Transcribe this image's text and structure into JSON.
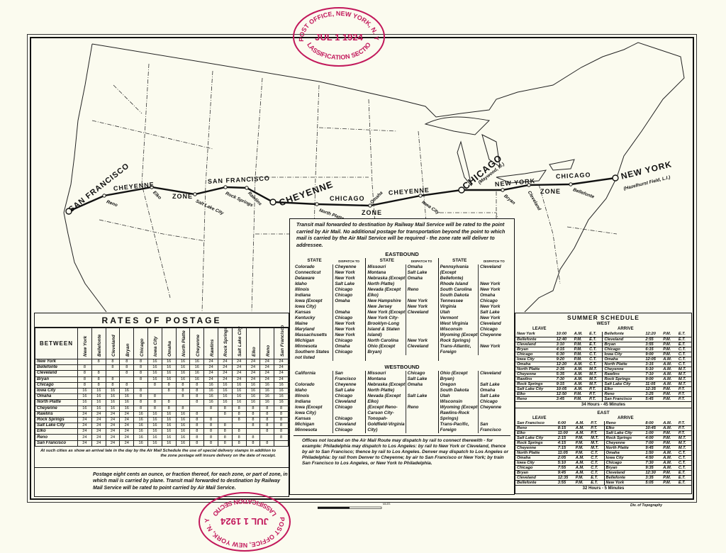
{
  "stamp": {
    "office": "POST OFFICE, NEW YORK, N. Y.",
    "month": "JUL",
    "day": "1",
    "year": "1924",
    "section": "CLASSIFICATION SECTION",
    "color": "#c2185b"
  },
  "map": {
    "route_labels": {
      "sf": "SAN FRANCISCO",
      "cheyenne_w": "CHEYENNE",
      "zone1": "ZONE",
      "sf2": "SAN FRANCISCO",
      "cheyenne": "CHEYENNE",
      "chicago_w": "CHICAGO",
      "zone2": "ZONE",
      "cheyenne2": "CHEYENNE",
      "chicago": "CHICAGO",
      "maywood": "(Maywood, Ill.)",
      "newyork_w": "NEW YORK",
      "zone3": "ZONE",
      "chicago2": "CHICAGO",
      "newyork": "NEW YORK",
      "hazelhurst": "(Hazelhurst Field, L.I.)"
    },
    "stops": [
      "Reno",
      "Elko",
      "Salt Lake City",
      "Rock Springs",
      "Rawlins",
      "North Platte",
      "Omaha",
      "Iowa City",
      "Bryan",
      "Cleveland",
      "Bellefonte"
    ],
    "scale_label": "MILES",
    "credit": "Div. of Topography"
  },
  "rates": {
    "title": "RATES OF POSTAGE",
    "between": "BETWEEN",
    "cities": [
      "New York",
      "Bellefonte",
      "Cleveland",
      "Bryan",
      "Chicago",
      "Iowa City",
      "Omaha",
      "North Platte",
      "Cheyenne",
      "Rawlins",
      "Rock Springs",
      "Salt Lake City",
      "Elko",
      "Reno",
      "San Francisco"
    ],
    "matrix": [
      [
        "",
        "8",
        "8",
        "8",
        "8",
        "16",
        "16",
        "16",
        "16",
        "24",
        "24",
        "24",
        "24",
        "24",
        "24"
      ],
      [
        "8",
        "",
        "8",
        "8",
        "8",
        "16",
        "16",
        "16",
        "16",
        "24",
        "24",
        "24",
        "24",
        "24",
        "24"
      ],
      [
        "8",
        "8",
        "",
        "8",
        "8",
        "16",
        "16",
        "16",
        "16",
        "24",
        "24",
        "24",
        "24",
        "24",
        "24"
      ],
      [
        "8",
        "8",
        "8",
        "",
        "8",
        "16",
        "16",
        "16",
        "16",
        "24",
        "24",
        "24",
        "24",
        "24",
        "24"
      ],
      [
        "8",
        "8",
        "8",
        "8",
        "",
        "8",
        "8",
        "8",
        "8",
        "16",
        "16",
        "16",
        "16",
        "16",
        "16"
      ],
      [
        "16",
        "16",
        "16",
        "16",
        "8",
        "",
        "8",
        "8",
        "8",
        "16",
        "16",
        "16",
        "16",
        "16",
        "16"
      ],
      [
        "16",
        "16",
        "16",
        "16",
        "8",
        "8",
        "",
        "8",
        "8",
        "16",
        "16",
        "16",
        "16",
        "16",
        "16"
      ],
      [
        "16",
        "16",
        "16",
        "16",
        "8",
        "8",
        "8",
        "",
        "8",
        "16",
        "16",
        "16",
        "16",
        "16",
        "16"
      ],
      [
        "16",
        "16",
        "16",
        "16",
        "8",
        "8",
        "8",
        "8",
        "",
        "8",
        "8",
        "8",
        "8",
        "8",
        "8"
      ],
      [
        "24",
        "24",
        "24",
        "24",
        "16",
        "16",
        "16",
        "16",
        "8",
        "",
        "8",
        "8",
        "8",
        "8",
        "8"
      ],
      [
        "24",
        "24",
        "24",
        "24",
        "16",
        "16",
        "16",
        "16",
        "8",
        "8",
        "",
        "8",
        "8",
        "8",
        "8"
      ],
      [
        "24",
        "24",
        "24",
        "24",
        "16",
        "16",
        "16",
        "16",
        "8",
        "8",
        "8",
        "",
        "8",
        "8",
        "8"
      ],
      [
        "24",
        "24",
        "24",
        "24",
        "16",
        "16",
        "16",
        "16",
        "8",
        "8",
        "8",
        "8",
        "",
        "8",
        "8"
      ],
      [
        "24",
        "24",
        "24",
        "24",
        "16",
        "16",
        "16",
        "16",
        "8",
        "8",
        "8",
        "8",
        "8",
        "",
        "8"
      ],
      [
        "24",
        "24",
        "24",
        "24",
        "16",
        "16",
        "16",
        "16",
        "8",
        "8",
        "8",
        "8",
        "8",
        "8",
        ""
      ]
    ],
    "note": "At such cities as show an arrival late in the day by the Air Mail Schedule the use of special delivery stamps in addition to the zone postage will insure delivery on the date of receipt.",
    "footer": "Postage eight cents an ounce, or fraction thereof, for each zone, or part of zone, in which mail is carried by plane. Transit mail forwarded to destination by Railway Mail Service will be rated to point carried by Air Mail Service."
  },
  "dispatch": {
    "intro": "Transit mail forwarded to destination by Railway Mail Service will be rated to the point carried by Air Mail. No additional postage for transportation beyond the point to which mail is carried by the Air Mail Service will be required - the zone rate will deliver to addressee.",
    "eastbound_title": "EASTBOUND",
    "westbound_title": "WESTBOUND",
    "state_header": "STATE",
    "dispatch_header": "DISPATCH TO",
    "eastbound": [
      [
        [
          "Colorado",
          "Cheyenne"
        ],
        [
          "Connecticut",
          "New York"
        ],
        [
          "Delaware",
          "New York"
        ],
        [
          "Idaho",
          "Salt Lake"
        ],
        [
          "Illinois",
          "Chicago"
        ],
        [
          "Indiana",
          "Chicago"
        ],
        [
          "Iowa (Except Iowa City)",
          "Omaha"
        ],
        [
          "Kansas",
          "Omaha"
        ],
        [
          "Kentucky",
          "Chicago"
        ],
        [
          "Maine",
          "New York"
        ],
        [
          "Maryland",
          "New York"
        ],
        [
          "Massachusetts",
          "New York"
        ],
        [
          "Michigan",
          "Chicago"
        ],
        [
          "Minnesota",
          "Omaha"
        ],
        [
          "Southern States not listed",
          "Chicago"
        ]
      ],
      [
        [
          "Missouri",
          "Omaha"
        ],
        [
          "Montana",
          "Salt Lake"
        ],
        [
          "Nebraska (Except North Platte)",
          "Omaha"
        ],
        [
          "Nevada (Except Elko)",
          "Reno"
        ],
        [
          "New Hampshire",
          "New York"
        ],
        [
          "New Jersey",
          "New York"
        ],
        [
          "New York (Except New York City-Brooklyn-Long Island & Staten Island)",
          "Cleveland"
        ],
        [
          "North Carolina",
          "New York"
        ],
        [
          "Ohio (Except Bryan)",
          "Cleveland"
        ]
      ],
      [
        [
          "Pennsylvania (Except Bellefonte)",
          "Cleveland"
        ],
        [
          "Rhode Island",
          "New York"
        ],
        [
          "South Carolina",
          "New York"
        ],
        [
          "South Dakota",
          "Omaha"
        ],
        [
          "Tennessee",
          "Chicago"
        ],
        [
          "Virginia",
          "New York"
        ],
        [
          "Utah",
          "Salt Lake"
        ],
        [
          "Vermont",
          "New York"
        ],
        [
          "West Virginia",
          "Cleveland"
        ],
        [
          "Wisconsin",
          "Chicago"
        ],
        [
          "Wyoming (Except Rock Springs)",
          "Cheyenne"
        ],
        [
          "Trans-Atlantic, Foreign",
          "New York"
        ]
      ]
    ],
    "westbound": [
      [
        [
          "California",
          "San Francisco"
        ],
        [
          "Colorado",
          "Cheyenne"
        ],
        [
          "Idaho",
          "Salt Lake"
        ],
        [
          "Illinois",
          "Chicago"
        ],
        [
          "Indiana",
          "Cleveland"
        ],
        [
          "Iowa (Except Iowa City)",
          "Chicago"
        ],
        [
          "Kansas",
          "Chicago"
        ],
        [
          "Michigan",
          "Cleveland"
        ],
        [
          "Minnesota",
          "Chicago"
        ]
      ],
      [
        [
          "Missouri",
          "Chicago"
        ],
        [
          "Montana",
          "Salt Lake"
        ],
        [
          "Nebraska (Except North Platte)",
          "Omaha"
        ],
        [
          "Nevada (Except Elko)",
          "Salt Lake"
        ],
        [
          "(Except Reno-Carson City-Tonopah-Goldfield-Virginia City)",
          "Reno"
        ]
      ],
      [
        [
          "Ohio (Except Bryan)",
          "Cleveland"
        ],
        [
          "Oregon",
          "Salt Lake"
        ],
        [
          "South Dakota",
          "Omaha"
        ],
        [
          "Utah",
          "Salt Lake"
        ],
        [
          "Wisconsin",
          "Chicago"
        ],
        [
          "Wyoming (Except Rawlins-Rock Springs)",
          "Cheyenne"
        ],
        [
          "Trans-Pacific, Foreign",
          "San Francisco"
        ]
      ]
    ],
    "footer": "Offices not located on the Air Mail Route may dispatch by rail to connect therewith - for example: Philadelphia may dispatch to Los Angeles: by rail to New York or Cleveland, thence by air to San Francisco; thence by rail to Los Angeles. Denver may dispatch to Los Angeles or Philadelphia: by rail from Denver to Cheyenne; by air to San Francisco or New York; by train San Francisco to Los Angeles, or New York to Philadelphia."
  },
  "schedule": {
    "title": "SUMMER SCHEDULE",
    "leave": "LEAVE",
    "arrive": "ARRIVE",
    "west_title": "WEST",
    "west": [
      [
        "New York",
        "10:00",
        "A.M.",
        "E.T.",
        "Bellefonte",
        "12:20",
        "P.M.",
        "E.T."
      ],
      [
        "Bellefonte",
        "12:40",
        "P.M.",
        "E.T.",
        "Cleveland",
        "2:55",
        "P.M.",
        "E.T."
      ],
      [
        "Cleveland",
        "3:10",
        "P.M.",
        "E.T.",
        "Bryan",
        "3:55",
        "P.M.",
        "E.T."
      ],
      [
        "Bryan",
        "4:15",
        "P.M.",
        "C.T.",
        "Chicago",
        "6:15",
        "P.M.",
        "C.T."
      ],
      [
        "Chicago",
        "6:30",
        "P.M.",
        "C.T.",
        "Iowa City",
        "9:00",
        "P.M.",
        "C.T."
      ],
      [
        "Iowa City",
        "9:20",
        "P.M.",
        "C.T.",
        "Omaha",
        "12:05",
        "A.M.",
        "C.T."
      ],
      [
        "Omaha",
        "12:20",
        "A.M.",
        "C.T.",
        "North Platte",
        "3:15",
        "A.M.",
        "C.T."
      ],
      [
        "North Platte",
        "2:35",
        "A.M.",
        "M.T.",
        "Cheyenne",
        "5:10",
        "A.M.",
        "M.T."
      ],
      [
        "Cheyenne",
        "5:35",
        "A.M.",
        "M.T.",
        "Rawlins",
        "7:10",
        "A.M.",
        "M.T."
      ],
      [
        "Rawlins",
        "7:30",
        "A.M.",
        "M.T.",
        "Rock Springs",
        "9:00",
        "A.M.",
        "M.T."
      ],
      [
        "Rock Springs",
        "9:15",
        "A.M.",
        "M.T.",
        "Salt Lake City",
        "11:05",
        "A.M.",
        "M.T."
      ],
      [
        "Salt Lake City",
        "10:05",
        "A.M.",
        "P.T.",
        "Elko",
        "12:35",
        "P.M.",
        "P.T."
      ],
      [
        "Elko",
        "12:50",
        "P.M.",
        "P.T.",
        "Reno",
        "3:25",
        "P.M.",
        "P.T."
      ],
      [
        "Reno",
        "3:45",
        "P.M.",
        "P.T.",
        "San Francisco",
        "5:45",
        "P.M.",
        "P.T."
      ]
    ],
    "west_total": "34 Hours - 45 Minutes",
    "east_title": "EAST",
    "east": [
      [
        "San Francisco",
        "6:00",
        "A.M.",
        "P.T.",
        "Reno",
        "8:00",
        "A.M.",
        "P.T."
      ],
      [
        "Reno",
        "8:15",
        "A.M.",
        "P.T.",
        "Elko",
        "10:45",
        "A.M.",
        "P.T."
      ],
      [
        "Elko",
        "11:00",
        "A.M.",
        "P.T.",
        "Salt Lake City",
        "1:00",
        "P.M.",
        "P.T."
      ],
      [
        "Salt Lake City",
        "2:15",
        "P.M.",
        "M.T.",
        "Rock Springs",
        "4:00",
        "P.M.",
        "M.T."
      ],
      [
        "Rock Springs",
        "4:15",
        "P.M.",
        "M.T.",
        "Cheyenne",
        "7:00",
        "P.M.",
        "M.T."
      ],
      [
        "Cheyenne",
        "7:15",
        "P.M.",
        "M.T.",
        "North Platte",
        "9:45",
        "P.M.",
        "M.T."
      ],
      [
        "North Platte",
        "11:05",
        "P.M.",
        "C.T.",
        "Omaha",
        "1:50",
        "A.M.",
        "C.T."
      ],
      [
        "Omaha",
        "2:05",
        "A.M.",
        "C.T.",
        "Iowa City",
        "4:50",
        "A.M.",
        "C.T."
      ],
      [
        "Iowa City",
        "5:10",
        "A.M.",
        "C.T.",
        "Chicago",
        "7:30",
        "A.M.",
        "C.T."
      ],
      [
        "Chicago",
        "7:55",
        "A.M.",
        "C.T.",
        "Bryan",
        "9:35",
        "A.M.",
        "C.T."
      ],
      [
        "Bryan",
        "9:45",
        "A.M.",
        "C.T.",
        "Cleveland",
        "12:30",
        "P.M.",
        "E.T."
      ],
      [
        "Cleveland",
        "12:35",
        "P.M.",
        "E.T.",
        "Bellefonte",
        "3:35",
        "P.M.",
        "E.T."
      ],
      [
        "Bellefonte",
        "3:55",
        "P.M.",
        "E.T.",
        "New York",
        "5:05",
        "P.M.",
        "E.T."
      ]
    ],
    "east_total": "32 Hours - 5 Minutes"
  }
}
